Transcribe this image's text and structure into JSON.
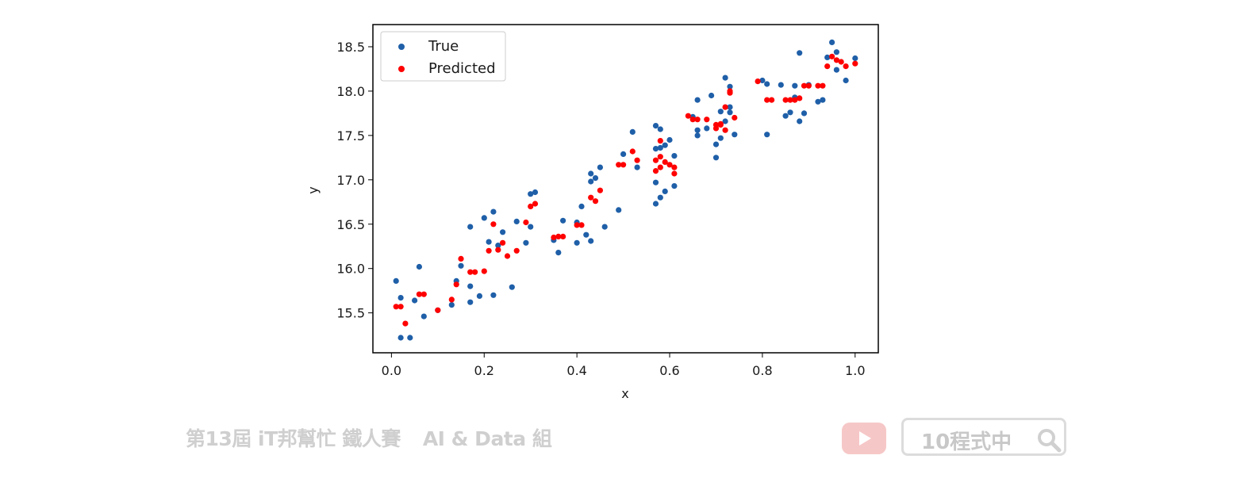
{
  "chart_data": {
    "type": "scatter",
    "xlabel": "x",
    "ylabel": "y",
    "xlim": [
      -0.04,
      1.05
    ],
    "ylim": [
      15.05,
      18.75
    ],
    "xticks": [
      "0.0",
      "0.2",
      "0.4",
      "0.6",
      "0.8",
      "1.0"
    ],
    "xtick_values": [
      0.0,
      0.2,
      0.4,
      0.6,
      0.8,
      1.0
    ],
    "yticks": [
      "15.5",
      "16.0",
      "16.5",
      "17.0",
      "17.5",
      "18.0",
      "18.5"
    ],
    "ytick_values": [
      15.5,
      16.0,
      16.5,
      17.0,
      17.5,
      18.0,
      18.5
    ],
    "grid": false,
    "legend_position": "upper-left",
    "series": [
      {
        "name": "True",
        "color": "#1f5fa8",
        "points": [
          [
            0.01,
            15.86
          ],
          [
            0.02,
            15.67
          ],
          [
            0.02,
            15.22
          ],
          [
            0.04,
            15.22
          ],
          [
            0.05,
            15.64
          ],
          [
            0.06,
            16.02
          ],
          [
            0.07,
            15.46
          ],
          [
            0.1,
            15.53
          ],
          [
            0.13,
            15.59
          ],
          [
            0.14,
            15.86
          ],
          [
            0.15,
            16.03
          ],
          [
            0.17,
            16.47
          ],
          [
            0.17,
            15.8
          ],
          [
            0.17,
            15.62
          ],
          [
            0.19,
            15.69
          ],
          [
            0.2,
            16.57
          ],
          [
            0.21,
            16.3
          ],
          [
            0.22,
            16.64
          ],
          [
            0.22,
            15.7
          ],
          [
            0.23,
            16.26
          ],
          [
            0.24,
            16.41
          ],
          [
            0.26,
            15.79
          ],
          [
            0.27,
            16.53
          ],
          [
            0.29,
            16.29
          ],
          [
            0.3,
            16.84
          ],
          [
            0.31,
            16.86
          ],
          [
            0.3,
            16.47
          ],
          [
            0.35,
            16.32
          ],
          [
            0.36,
            16.18
          ],
          [
            0.37,
            16.54
          ],
          [
            0.4,
            16.29
          ],
          [
            0.4,
            16.52
          ],
          [
            0.41,
            16.7
          ],
          [
            0.42,
            16.38
          ],
          [
            0.43,
            17.07
          ],
          [
            0.43,
            16.98
          ],
          [
            0.43,
            16.31
          ],
          [
            0.44,
            17.02
          ],
          [
            0.45,
            17.14
          ],
          [
            0.46,
            16.47
          ],
          [
            0.49,
            16.66
          ],
          [
            0.5,
            17.29
          ],
          [
            0.52,
            17.54
          ],
          [
            0.53,
            17.14
          ],
          [
            0.57,
            17.61
          ],
          [
            0.58,
            17.57
          ],
          [
            0.57,
            17.35
          ],
          [
            0.58,
            17.36
          ],
          [
            0.57,
            16.97
          ],
          [
            0.57,
            16.73
          ],
          [
            0.58,
            16.8
          ],
          [
            0.59,
            16.87
          ],
          [
            0.59,
            17.39
          ],
          [
            0.6,
            17.45
          ],
          [
            0.61,
            16.93
          ],
          [
            0.61,
            17.27
          ],
          [
            0.65,
            17.71
          ],
          [
            0.66,
            17.9
          ],
          [
            0.66,
            17.56
          ],
          [
            0.66,
            17.5
          ],
          [
            0.68,
            17.58
          ],
          [
            0.69,
            17.95
          ],
          [
            0.7,
            17.25
          ],
          [
            0.7,
            17.4
          ],
          [
            0.71,
            17.77
          ],
          [
            0.71,
            17.47
          ],
          [
            0.72,
            17.66
          ],
          [
            0.72,
            18.15
          ],
          [
            0.73,
            18.05
          ],
          [
            0.73,
            17.82
          ],
          [
            0.74,
            17.51
          ],
          [
            0.73,
            17.76
          ],
          [
            0.8,
            18.12
          ],
          [
            0.81,
            18.08
          ],
          [
            0.81,
            17.51
          ],
          [
            0.84,
            18.07
          ],
          [
            0.85,
            17.72
          ],
          [
            0.86,
            17.76
          ],
          [
            0.87,
            18.06
          ],
          [
            0.87,
            17.93
          ],
          [
            0.88,
            18.43
          ],
          [
            0.88,
            17.66
          ],
          [
            0.89,
            17.75
          ],
          [
            0.9,
            18.07
          ],
          [
            0.92,
            17.88
          ],
          [
            0.93,
            17.9
          ],
          [
            0.94,
            18.38
          ],
          [
            0.95,
            18.55
          ],
          [
            0.96,
            18.24
          ],
          [
            0.96,
            18.44
          ],
          [
            0.98,
            18.12
          ],
          [
            1.0,
            18.37
          ]
        ]
      },
      {
        "name": "Predicted",
        "color": "#ff0000",
        "points": [
          [
            0.01,
            15.57
          ],
          [
            0.02,
            15.57
          ],
          [
            0.03,
            15.38
          ],
          [
            0.06,
            15.71
          ],
          [
            0.07,
            15.71
          ],
          [
            0.1,
            15.53
          ],
          [
            0.13,
            15.65
          ],
          [
            0.14,
            15.82
          ],
          [
            0.15,
            16.11
          ],
          [
            0.17,
            15.96
          ],
          [
            0.18,
            15.96
          ],
          [
            0.2,
            15.97
          ],
          [
            0.21,
            16.2
          ],
          [
            0.22,
            16.5
          ],
          [
            0.23,
            16.21
          ],
          [
            0.24,
            16.29
          ],
          [
            0.25,
            16.14
          ],
          [
            0.27,
            16.2
          ],
          [
            0.29,
            16.52
          ],
          [
            0.3,
            16.7
          ],
          [
            0.31,
            16.73
          ],
          [
            0.35,
            16.35
          ],
          [
            0.36,
            16.36
          ],
          [
            0.37,
            16.36
          ],
          [
            0.4,
            16.49
          ],
          [
            0.41,
            16.49
          ],
          [
            0.43,
            16.8
          ],
          [
            0.44,
            16.76
          ],
          [
            0.45,
            16.88
          ],
          [
            0.49,
            17.17
          ],
          [
            0.5,
            17.17
          ],
          [
            0.52,
            17.32
          ],
          [
            0.53,
            17.22
          ],
          [
            0.57,
            17.1
          ],
          [
            0.57,
            17.22
          ],
          [
            0.58,
            17.44
          ],
          [
            0.58,
            17.26
          ],
          [
            0.58,
            17.14
          ],
          [
            0.59,
            17.2
          ],
          [
            0.6,
            17.17
          ],
          [
            0.61,
            17.14
          ],
          [
            0.61,
            17.07
          ],
          [
            0.64,
            17.72
          ],
          [
            0.65,
            17.68
          ],
          [
            0.66,
            17.68
          ],
          [
            0.68,
            17.68
          ],
          [
            0.7,
            17.62
          ],
          [
            0.7,
            17.58
          ],
          [
            0.71,
            17.63
          ],
          [
            0.71,
            17.62
          ],
          [
            0.72,
            17.56
          ],
          [
            0.72,
            17.82
          ],
          [
            0.73,
            17.98
          ],
          [
            0.73,
            18.0
          ],
          [
            0.74,
            17.7
          ],
          [
            0.79,
            18.11
          ],
          [
            0.81,
            17.9
          ],
          [
            0.82,
            17.9
          ],
          [
            0.85,
            17.9
          ],
          [
            0.86,
            17.9
          ],
          [
            0.87,
            17.9
          ],
          [
            0.88,
            17.92
          ],
          [
            0.89,
            18.06
          ],
          [
            0.9,
            18.06
          ],
          [
            0.92,
            18.06
          ],
          [
            0.93,
            18.06
          ],
          [
            0.94,
            18.28
          ],
          [
            0.95,
            18.39
          ],
          [
            0.96,
            18.35
          ],
          [
            0.97,
            18.33
          ],
          [
            0.98,
            18.28
          ],
          [
            1.0,
            18.31
          ]
        ]
      }
    ]
  },
  "watermark": {
    "left_text_a": "第13屆 iT邦幫忙 鐵人賽",
    "left_text_b": "AI & Data 組",
    "search_text": "10程式中"
  },
  "icons": {
    "youtube": "youtube-logo-icon",
    "search": "magnifier-icon"
  }
}
